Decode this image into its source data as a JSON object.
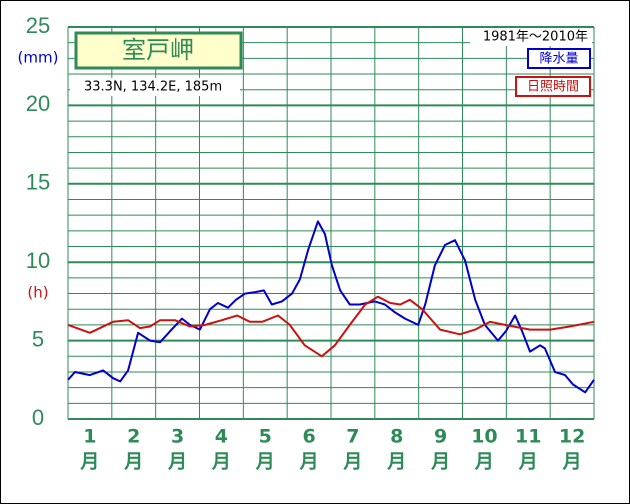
{
  "chart_data": {
    "type": "line",
    "title": "室戸岬",
    "subtitle": "33.3N,  134.2E,  185m",
    "period": "1981年～2010年",
    "y_unit_label": "(mm)",
    "y_unit_label_2": "(h)",
    "categories": [
      "1",
      "2",
      "3",
      "4",
      "5",
      "6",
      "7",
      "8",
      "9",
      "10",
      "11",
      "12"
    ],
    "month_unit": "月",
    "xlim": [
      0,
      12
    ],
    "x_grid": [
      0,
      1,
      2,
      3,
      4,
      5,
      6,
      7,
      8,
      9,
      10,
      11,
      12
    ],
    "ylim": [
      0,
      25
    ],
    "yticks": [
      0,
      5,
      10,
      15,
      20,
      25
    ],
    "minor_yticks": [
      1,
      2,
      3,
      4,
      6,
      7,
      8,
      9,
      11,
      12,
      13,
      14,
      16,
      17,
      18,
      19,
      21,
      22,
      23,
      24
    ],
    "grid": true,
    "grid_color": "#2e8b57",
    "series": [
      {
        "name": "降水量",
        "color": "#0000cc",
        "x": [
          0,
          0.16,
          0.5,
          0.8,
          1.03,
          1.19,
          1.37,
          1.6,
          1.87,
          2.1,
          2.33,
          2.6,
          2.78,
          3.01,
          3.24,
          3.42,
          3.65,
          3.83,
          4.04,
          4.29,
          4.47,
          4.65,
          4.88,
          5.11,
          5.29,
          5.48,
          5.7,
          5.86,
          6.02,
          6.21,
          6.43,
          6.66,
          7.0,
          7.23,
          7.46,
          7.69,
          7.99,
          8.15,
          8.37,
          8.6,
          8.83,
          9.06,
          9.29,
          9.51,
          9.81,
          9.99,
          10.2,
          10.36,
          10.54,
          10.77,
          10.88,
          11.11,
          11.34,
          11.52,
          11.8,
          12
        ],
        "values": [
          2.5,
          3.0,
          2.8,
          3.1,
          2.6,
          2.4,
          3.1,
          5.5,
          5.0,
          4.9,
          5.6,
          6.4,
          6.0,
          5.7,
          7.0,
          7.4,
          7.1,
          7.6,
          8.0,
          8.1,
          8.2,
          7.3,
          7.5,
          8.0,
          8.9,
          10.8,
          12.6,
          11.8,
          9.8,
          8.2,
          7.3,
          7.3,
          7.5,
          7.3,
          6.8,
          6.4,
          6.0,
          7.3,
          9.8,
          11.1,
          11.4,
          10.1,
          7.6,
          6.0,
          5.0,
          5.6,
          6.6,
          5.6,
          4.3,
          4.7,
          4.5,
          3.0,
          2.8,
          2.2,
          1.7,
          2.5
        ]
      },
      {
        "name": "日照時間",
        "color": "#cc1111",
        "x": [
          0,
          0.5,
          1.03,
          1.37,
          1.64,
          1.87,
          2.1,
          2.44,
          2.78,
          3.13,
          3.51,
          3.86,
          4.15,
          4.43,
          4.79,
          5.06,
          5.4,
          5.79,
          6.09,
          6.43,
          6.78,
          7.07,
          7.35,
          7.58,
          7.8,
          8.08,
          8.49,
          8.94,
          9.29,
          9.63,
          9.97,
          10.54,
          11.0,
          11.45,
          12
        ],
        "values": [
          6.0,
          5.5,
          6.2,
          6.3,
          5.8,
          5.9,
          6.3,
          6.3,
          5.9,
          6.0,
          6.3,
          6.6,
          6.2,
          6.2,
          6.6,
          6.0,
          4.7,
          4.0,
          4.7,
          6.0,
          7.3,
          7.8,
          7.4,
          7.3,
          7.6,
          7.0,
          5.7,
          5.4,
          5.7,
          6.2,
          6.0,
          5.7,
          5.7,
          5.9,
          6.2
        ]
      }
    ]
  }
}
